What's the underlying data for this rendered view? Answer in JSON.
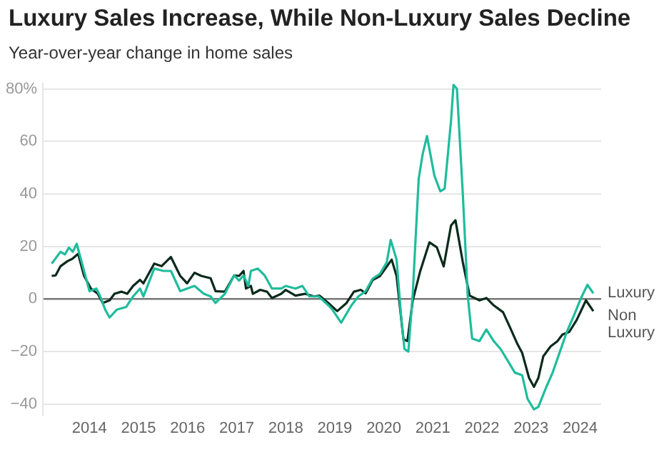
{
  "chart_data": {
    "type": "line",
    "title": "Luxury Sales Increase, While Non-Luxury Sales Decline",
    "subtitle": "Year-over-year change in home sales",
    "xlim": [
      2013.05,
      2024.43
    ],
    "xticks": [
      2014,
      2015,
      2016,
      2017,
      2018,
      2019,
      2020,
      2021,
      2022,
      2023,
      2024
    ],
    "ylim": [
      -44,
      82
    ],
    "yticks": [
      {
        "value": -40,
        "label": "−40"
      },
      {
        "value": -20,
        "label": "−20"
      },
      0,
      20,
      40,
      60,
      {
        "value": 80,
        "label": "80%"
      }
    ],
    "grid": "y",
    "legend": false,
    "marker": "none",
    "line_style": "solid",
    "series": [
      {
        "name": "Luxury",
        "color": "#1fbc9c",
        "x": [
          2013.23,
          2013.41,
          2013.5,
          2013.58,
          2013.66,
          2013.74,
          2013.89,
          2014.0,
          2014.14,
          2014.22,
          2014.32,
          2014.41,
          2014.56,
          2014.75,
          2014.89,
          2015.03,
          2015.1,
          2015.32,
          2015.51,
          2015.66,
          2015.85,
          2015.99,
          2016.14,
          2016.33,
          2016.47,
          2016.57,
          2016.76,
          2016.95,
          2017.05,
          2017.14,
          2017.24,
          2017.29,
          2017.43,
          2017.57,
          2017.72,
          2017.91,
          2018.0,
          2018.2,
          2018.34,
          2018.48,
          2018.67,
          2018.87,
          2018.95,
          2019.13,
          2019.34,
          2019.48,
          2019.63,
          2019.77,
          2019.92,
          2020.06,
          2020.14,
          2020.26,
          2020.35,
          2020.42,
          2020.5,
          2020.59,
          2020.71,
          2020.79,
          2020.88,
          2021.03,
          2021.15,
          2021.24,
          2021.37,
          2021.42,
          2021.49,
          2021.61,
          2021.71,
          2021.8,
          2021.95,
          2022.09,
          2022.24,
          2022.38,
          2022.53,
          2022.67,
          2022.82,
          2022.93,
          2023.06,
          2023.15,
          2023.3,
          2023.44,
          2023.59,
          2023.73,
          2023.88,
          2024.02,
          2024.15,
          2024.27
        ],
        "values": [
          13.5,
          18,
          17,
          19.6,
          18,
          21,
          10.7,
          3,
          4,
          1,
          -4,
          -7,
          -4,
          -3,
          1,
          4,
          1,
          11.6,
          10.7,
          10.7,
          3,
          4,
          5,
          2,
          1,
          -1.5,
          2,
          9,
          7,
          9,
          5,
          10.7,
          11.6,
          9,
          4,
          4,
          5,
          4,
          5,
          1,
          1,
          -2.4,
          -4,
          -9,
          -2.4,
          1,
          3,
          7.7,
          9.6,
          14,
          22.5,
          15,
          -6,
          -19,
          -20,
          2.2,
          45.6,
          55,
          62,
          47,
          41,
          42,
          68,
          81.5,
          80,
          40,
          1.3,
          -15,
          -16,
          -11.6,
          -16,
          -19,
          -23.6,
          -28,
          -29,
          -38,
          -42,
          -41,
          -34,
          -28,
          -20,
          -12.5,
          -6,
          0.4,
          5.4,
          2.2
        ]
      },
      {
        "name": "Non Luxury",
        "color": "#0b2a1c",
        "x": [
          2013.23,
          2013.31,
          2013.41,
          2013.55,
          2013.65,
          2013.77,
          2013.89,
          2014.03,
          2014.17,
          2014.27,
          2014.41,
          2014.51,
          2014.65,
          2014.77,
          2014.89,
          2015.03,
          2015.1,
          2015.32,
          2015.47,
          2015.66,
          2015.85,
          2015.99,
          2016.14,
          2016.28,
          2016.47,
          2016.57,
          2016.76,
          2016.95,
          2017.05,
          2017.14,
          2017.19,
          2017.29,
          2017.33,
          2017.48,
          2017.62,
          2017.72,
          2017.91,
          2018.0,
          2018.2,
          2018.39,
          2018.58,
          2018.69,
          2018.87,
          2019.05,
          2019.24,
          2019.39,
          2019.53,
          2019.63,
          2019.77,
          2019.92,
          2020.16,
          2020.26,
          2020.4,
          2020.48,
          2020.59,
          2020.74,
          2020.93,
          2021.08,
          2021.22,
          2021.37,
          2021.46,
          2021.61,
          2021.75,
          2021.95,
          2022.09,
          2022.24,
          2022.43,
          2022.57,
          2022.72,
          2022.82,
          2022.96,
          2023.06,
          2023.15,
          2023.25,
          2023.4,
          2023.54,
          2023.64,
          2023.78,
          2023.93,
          2024.12,
          2024.27
        ],
        "values": [
          8.8,
          9,
          12.5,
          14.4,
          15.3,
          17.2,
          8.8,
          4,
          2,
          -1.5,
          -0.5,
          2,
          2.8,
          2,
          5,
          7.3,
          6,
          13.5,
          12.5,
          16,
          8.8,
          6,
          10,
          8.8,
          7.9,
          3,
          2.8,
          9,
          8.8,
          10.7,
          4,
          5,
          2,
          3.5,
          2.8,
          0.4,
          2,
          3.5,
          1.3,
          2,
          1,
          1.3,
          -1.5,
          -4.6,
          -1.5,
          2.8,
          3.5,
          2.2,
          7.2,
          8.7,
          15,
          8.7,
          -15.3,
          -16,
          -0.5,
          10.5,
          21.6,
          19.7,
          12.4,
          28,
          30,
          14,
          1.3,
          -0.5,
          0.4,
          -2.4,
          -5,
          -10.7,
          -17,
          -20.5,
          -30,
          -33.4,
          -30,
          -21.8,
          -18,
          -16,
          -13.5,
          -12.5,
          -8,
          -0.5,
          -4.6
        ]
      }
    ]
  }
}
